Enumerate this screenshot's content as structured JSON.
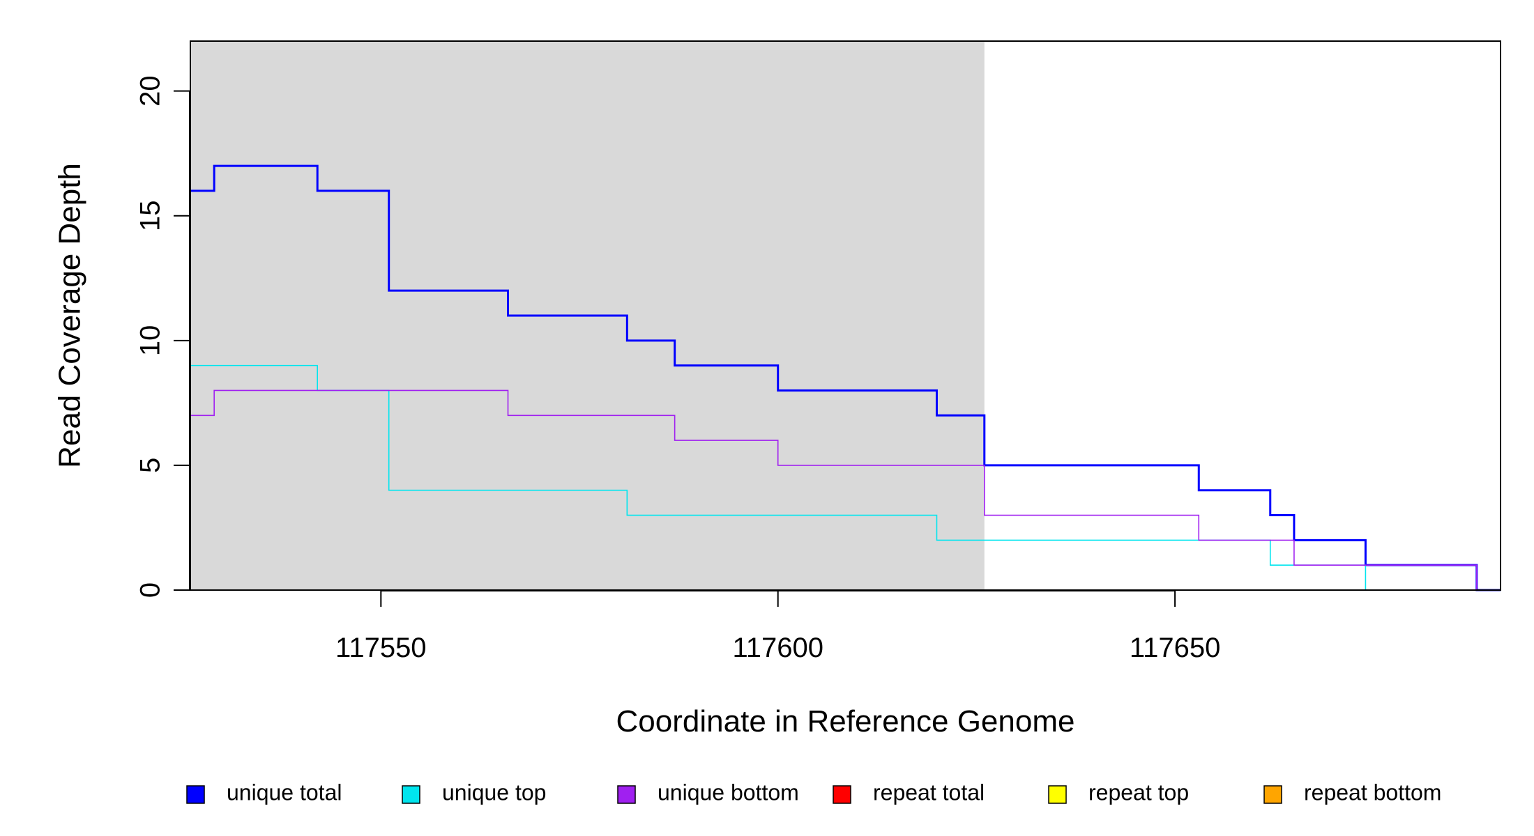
{
  "chart_data": {
    "type": "line",
    "title": "",
    "xlabel": "Coordinate in Reference Genome",
    "ylabel": "Read Coverage Depth",
    "xlim": [
      117526,
      117691
    ],
    "ylim": [
      0,
      22
    ],
    "x_ticks": [
      117550,
      117600,
      117650
    ],
    "y_ticks": [
      0,
      5,
      10,
      15,
      20
    ],
    "grid": false,
    "shaded_region": {
      "x_start": 117526,
      "x_end": 117626,
      "color": "#d9d9d9"
    },
    "legend_position": "bottom",
    "series": [
      {
        "name": "unique total",
        "color": "#0000ff",
        "bold": true,
        "steps": [
          [
            117526,
            16
          ],
          [
            117529,
            17
          ],
          [
            117542,
            16
          ],
          [
            117551,
            12
          ],
          [
            117566,
            11
          ],
          [
            117581,
            10
          ],
          [
            117587,
            9
          ],
          [
            117600,
            8
          ],
          [
            117620,
            7
          ],
          [
            117626,
            5
          ],
          [
            117653,
            4
          ],
          [
            117662,
            3
          ],
          [
            117665,
            2
          ],
          [
            117674,
            1
          ],
          [
            117688,
            0
          ]
        ]
      },
      {
        "name": "unique top",
        "color": "#00e5ee",
        "bold": false,
        "steps": [
          [
            117526,
            9
          ],
          [
            117542,
            8
          ],
          [
            117551,
            4
          ],
          [
            117581,
            3
          ],
          [
            117620,
            2
          ],
          [
            117662,
            1
          ],
          [
            117674,
            0
          ]
        ]
      },
      {
        "name": "unique bottom",
        "color": "#a020f0",
        "bold": false,
        "steps": [
          [
            117526,
            7
          ],
          [
            117529,
            8
          ],
          [
            117566,
            7
          ],
          [
            117587,
            6
          ],
          [
            117600,
            5
          ],
          [
            117626,
            3
          ],
          [
            117653,
            2
          ],
          [
            117665,
            1
          ],
          [
            117688,
            0
          ]
        ]
      },
      {
        "name": "repeat total",
        "color": "#ff0000",
        "bold": false,
        "steps": [
          [
            117526,
            0
          ]
        ]
      },
      {
        "name": "repeat top",
        "color": "#ffff00",
        "bold": false,
        "steps": [
          [
            117526,
            0
          ]
        ]
      },
      {
        "name": "repeat bottom",
        "color": "#ffa500",
        "bold": false,
        "steps": [
          [
            117526,
            0
          ]
        ]
      }
    ]
  }
}
